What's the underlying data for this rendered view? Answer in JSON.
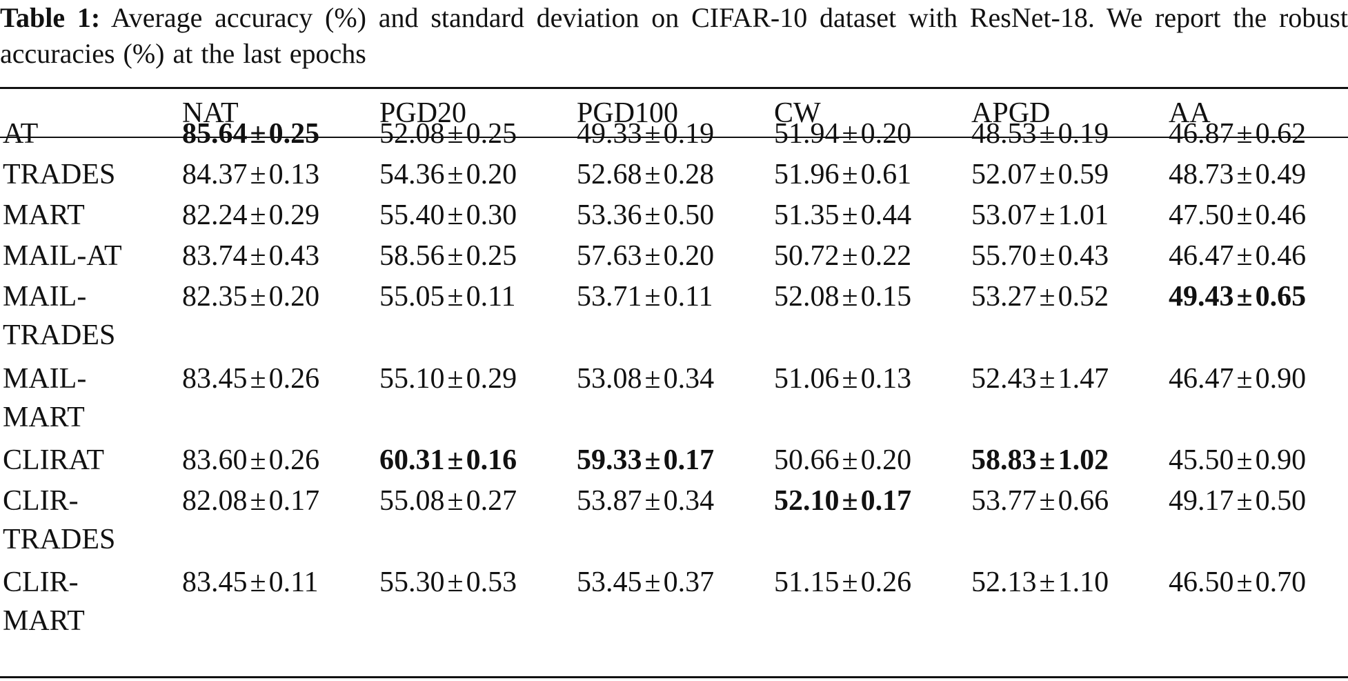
{
  "caption": {
    "label": "Table 1:",
    "text": " Average accuracy (%) and standard deviation on CIFAR-10 dataset with ResNet-18. We report the robust accuracies (%) at the last epochs"
  },
  "table": {
    "columns": [
      "NAT",
      "PGD20",
      "PGD100",
      "CW",
      "APGD",
      "AA"
    ],
    "rows": [
      {
        "method": "AT",
        "cells": [
          {
            "mean": "85.64",
            "sd": "0.25",
            "best": true
          },
          {
            "mean": "52.08",
            "sd": "0.25"
          },
          {
            "mean": "49.33",
            "sd": "0.19"
          },
          {
            "mean": "51.94",
            "sd": "0.20"
          },
          {
            "mean": "48.53",
            "sd": "0.19"
          },
          {
            "mean": "46.87",
            "sd": "0.62"
          }
        ]
      },
      {
        "method": "TRADES",
        "cells": [
          {
            "mean": "84.37",
            "sd": "0.13"
          },
          {
            "mean": "54.36",
            "sd": "0.20"
          },
          {
            "mean": "52.68",
            "sd": "0.28"
          },
          {
            "mean": "51.96",
            "sd": "0.61"
          },
          {
            "mean": "52.07",
            "sd": "0.59"
          },
          {
            "mean": "48.73",
            "sd": "0.49"
          }
        ]
      },
      {
        "method": "MART",
        "cells": [
          {
            "mean": "82.24",
            "sd": "0.29"
          },
          {
            "mean": "55.40",
            "sd": "0.30"
          },
          {
            "mean": "53.36",
            "sd": "0.50"
          },
          {
            "mean": "51.35",
            "sd": "0.44"
          },
          {
            "mean": "53.07",
            "sd": "1.01"
          },
          {
            "mean": "47.50",
            "sd": "0.46"
          }
        ]
      },
      {
        "method": "MAIL-AT",
        "cells": [
          {
            "mean": "83.74",
            "sd": "0.43"
          },
          {
            "mean": "58.56",
            "sd": "0.25"
          },
          {
            "mean": "57.63",
            "sd": "0.20"
          },
          {
            "mean": "50.72",
            "sd": "0.22"
          },
          {
            "mean": "55.70",
            "sd": "0.43"
          },
          {
            "mean": "46.47",
            "sd": "0.46"
          }
        ]
      },
      {
        "method": "MAIL-TRADES",
        "cells": [
          {
            "mean": "82.35",
            "sd": "0.20"
          },
          {
            "mean": "55.05",
            "sd": "0.11"
          },
          {
            "mean": "53.71",
            "sd": "0.11"
          },
          {
            "mean": "52.08",
            "sd": "0.15"
          },
          {
            "mean": "53.27",
            "sd": "0.52"
          },
          {
            "mean": "49.43",
            "sd": "0.65",
            "best": true
          }
        ]
      },
      {
        "method": "MAIL-MART",
        "cells": [
          {
            "mean": "83.45",
            "sd": "0.26"
          },
          {
            "mean": "55.10",
            "sd": "0.29"
          },
          {
            "mean": "53.08",
            "sd": "0.34"
          },
          {
            "mean": "51.06",
            "sd": "0.13"
          },
          {
            "mean": "52.43",
            "sd": "1.47"
          },
          {
            "mean": "46.47",
            "sd": "0.90"
          }
        ]
      },
      {
        "method": "CLIRAT",
        "cells": [
          {
            "mean": "83.60",
            "sd": "0.26"
          },
          {
            "mean": "60.31",
            "sd": "0.16",
            "best": true
          },
          {
            "mean": "59.33",
            "sd": "0.17",
            "best": true
          },
          {
            "mean": "50.66",
            "sd": "0.20"
          },
          {
            "mean": "58.83",
            "sd": "1.02",
            "best": true
          },
          {
            "mean": "45.50",
            "sd": "0.90"
          }
        ]
      },
      {
        "method": "CLIR-TRADES",
        "cells": [
          {
            "mean": "82.08",
            "sd": "0.17"
          },
          {
            "mean": "55.08",
            "sd": "0.27"
          },
          {
            "mean": "53.87",
            "sd": "0.34"
          },
          {
            "mean": "52.10",
            "sd": "0.17",
            "best": true
          },
          {
            "mean": "53.77",
            "sd": "0.66"
          },
          {
            "mean": "49.17",
            "sd": "0.50"
          }
        ]
      },
      {
        "method": "CLIR-MART",
        "cells": [
          {
            "mean": "83.45",
            "sd": "0.11"
          },
          {
            "mean": "55.30",
            "sd": "0.53"
          },
          {
            "mean": "53.45",
            "sd": "0.37"
          },
          {
            "mean": "51.15",
            "sd": "0.26"
          },
          {
            "mean": "52.13",
            "sd": "1.10"
          },
          {
            "mean": "46.50",
            "sd": "0.70"
          }
        ]
      }
    ]
  }
}
